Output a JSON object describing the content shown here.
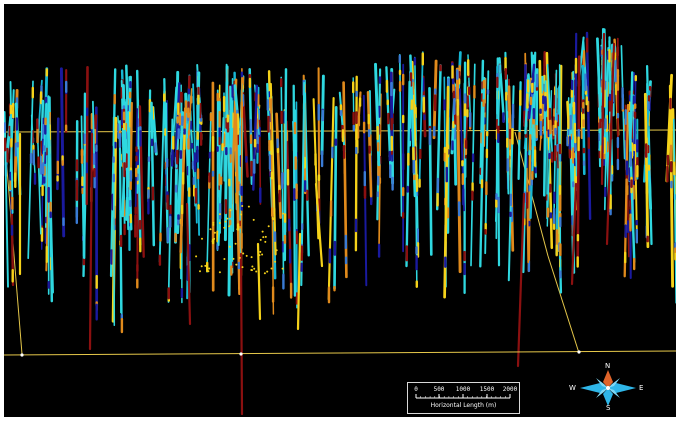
{
  "scene": {
    "background": "#000000",
    "bounding_box_color": "#e6c84a",
    "drillhole_colors": [
      "#2fd8e0",
      "#17b7d4",
      "#f5d21a",
      "#e08a1c",
      "#8b1010",
      "#1a1a9e",
      "#3a7bd5"
    ]
  },
  "scale_bar": {
    "ticks": [
      "0",
      "500",
      "1000",
      "1500",
      "2000"
    ],
    "label": "Horizontal Length (m)"
  },
  "compass": {
    "north": "N",
    "south": "S",
    "east": "E",
    "west": "W",
    "colors": [
      "#2fb6e8",
      "#e0642a"
    ]
  }
}
